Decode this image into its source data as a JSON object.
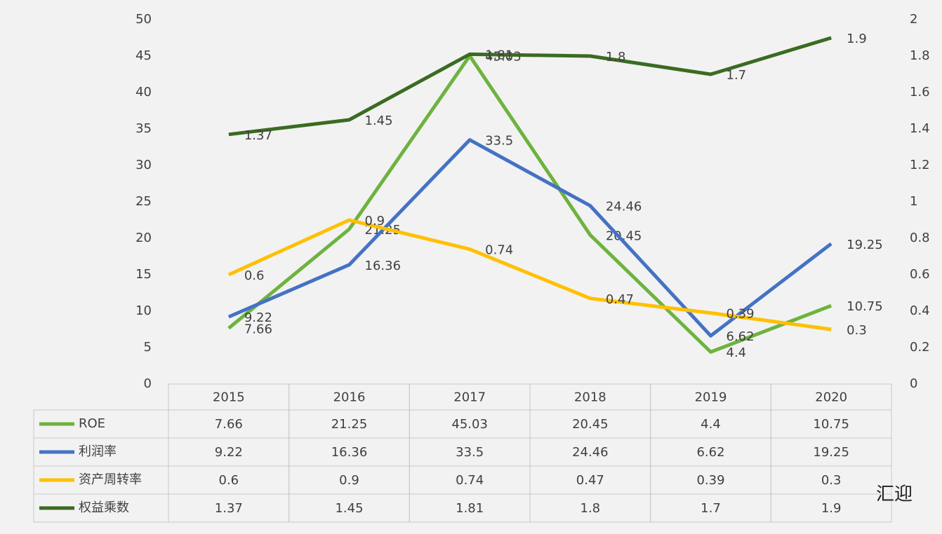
{
  "chart_data": {
    "type": "line",
    "categories": [
      "2015",
      "2016",
      "2017",
      "2018",
      "2019",
      "2020"
    ],
    "series": [
      {
        "name": "ROE",
        "color": "#6db33f",
        "values": [
          7.66,
          21.25,
          45.03,
          20.45,
          4.4,
          10.75
        ]
      },
      {
        "name": "利润率",
        "color": "#4472c4",
        "values": [
          9.22,
          16.36,
          33.5,
          24.46,
          6.62,
          19.25
        ]
      },
      {
        "name": "资产周转率",
        "color": "#ffc000",
        "axis": "y2",
        "values": [
          0.6,
          0.9,
          0.74,
          0.47,
          0.39,
          0.3
        ]
      },
      {
        "name": "权益乘数",
        "color": "#3a6b22",
        "axis": "y2",
        "values": [
          1.37,
          1.45,
          1.81,
          1.8,
          1.7,
          1.9
        ]
      }
    ],
    "ylim": [
      0,
      50
    ],
    "yticks": [
      0,
      5,
      10,
      15,
      20,
      25,
      30,
      35,
      40,
      45,
      50
    ],
    "y2lim": [
      0,
      2
    ],
    "y2ticks": [
      0,
      0.2,
      0.4,
      0.6,
      0.8,
      1,
      1.2,
      1.4,
      1.6,
      1.8,
      2
    ],
    "data_table": true,
    "watermark": "汇迎"
  }
}
